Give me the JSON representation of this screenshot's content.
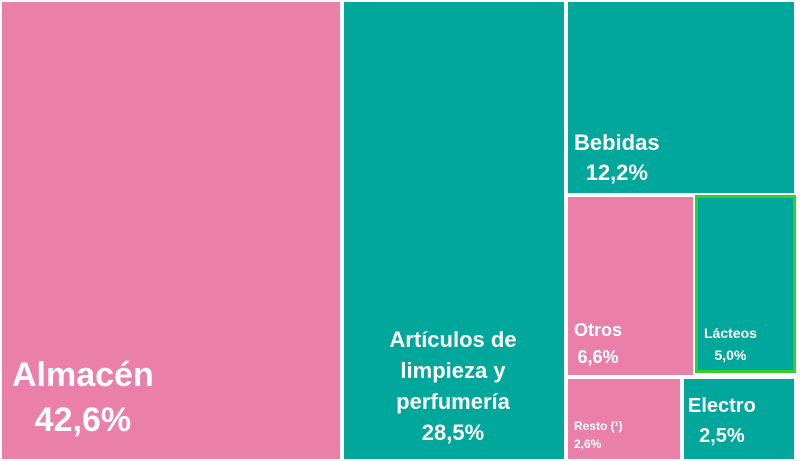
{
  "colors": {
    "pink": "#ea80a8",
    "teal": "#00a79a",
    "highlight": "#2fd12a",
    "gap": "#ffffff"
  },
  "chart_data": {
    "type": "treemap",
    "unit": "%",
    "items": [
      {
        "name": "Almacén",
        "value": 42.6,
        "label": "42,6%",
        "color": "pink"
      },
      {
        "name": "Artículos de limpieza y perfumería",
        "value": 28.5,
        "label": "28,5%",
        "color": "teal"
      },
      {
        "name": "Bebidas",
        "value": 12.2,
        "label": "12,2%",
        "color": "teal"
      },
      {
        "name": "Otros",
        "value": 6.6,
        "label": "6,6%",
        "color": "pink"
      },
      {
        "name": "Lácteos",
        "value": 5.0,
        "label": "5,0%",
        "color": "teal",
        "highlighted": true
      },
      {
        "name": "Resto (¹)",
        "value": 2.6,
        "label": "2,6%",
        "color": "pink"
      },
      {
        "name": "Electro",
        "value": 2.5,
        "label": "2,5%",
        "color": "teal"
      }
    ]
  }
}
